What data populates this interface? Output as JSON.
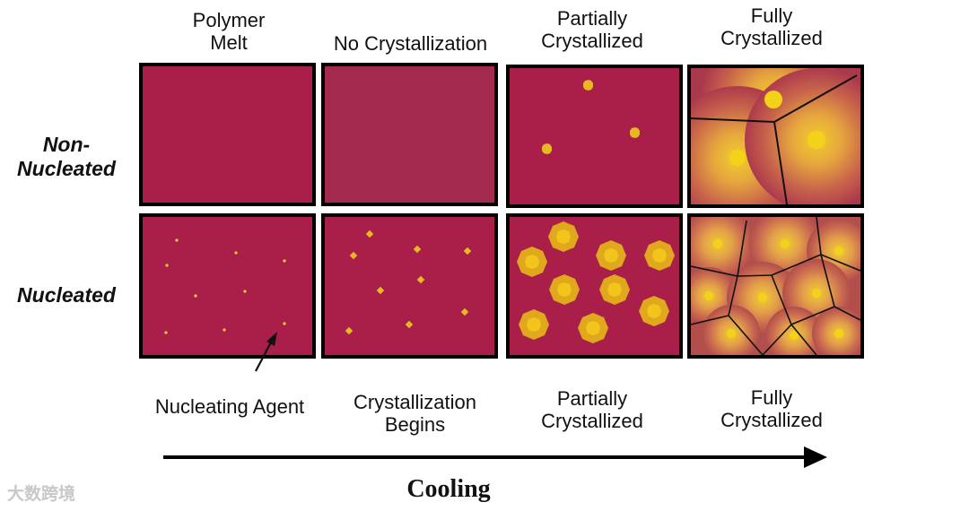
{
  "columns_top": [
    "Polymer\nMelt",
    "No Crystallization",
    "Partially\nCrystallized",
    "Fully\nCrystallized"
  ],
  "columns_bottom": [
    "Nucleating Agent",
    "Crystallization\nBegins",
    "Partially\nCrystallized",
    "Fully\nCrystallized"
  ],
  "rows": [
    "Non-\nNucleated",
    "Nucleated"
  ],
  "axis_label": "Cooling",
  "watermark": "大数跨境",
  "colors": {
    "melt": "#a91f4a",
    "melt_alt": "#a52a50",
    "crystal": "#e8b820",
    "crystal_core": "#f4cc1a",
    "border": "#000000"
  }
}
